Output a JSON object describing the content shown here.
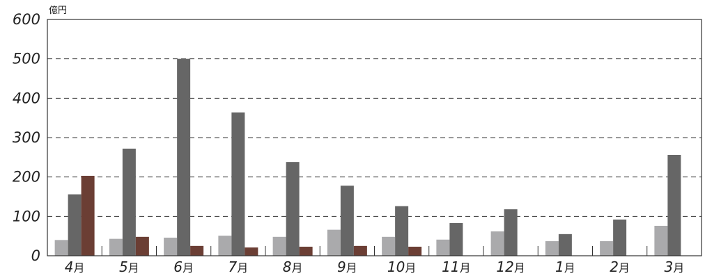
{
  "chart_data": {
    "type": "bar",
    "unit": "億円",
    "categories": [
      {
        "num": "4",
        "unit": "月"
      },
      {
        "num": "5",
        "unit": "月"
      },
      {
        "num": "6",
        "unit": "月"
      },
      {
        "num": "7",
        "unit": "月"
      },
      {
        "num": "8",
        "unit": "月"
      },
      {
        "num": "9",
        "unit": "月"
      },
      {
        "num": "10",
        "unit": "月"
      },
      {
        "num": "11",
        "unit": "月"
      },
      {
        "num": "12",
        "unit": "月"
      },
      {
        "num": "1",
        "unit": "月"
      },
      {
        "num": "2",
        "unit": "月"
      },
      {
        "num": "3",
        "unit": "月"
      }
    ],
    "series": [
      {
        "color": "#aaaaac",
        "values": [
          40,
          43,
          46,
          51,
          48,
          66,
          48,
          41,
          62,
          37,
          37,
          76
        ]
      },
      {
        "color": "#666666",
        "values": [
          156,
          272,
          500,
          364,
          238,
          178,
          126,
          83,
          118,
          55,
          92,
          256
        ]
      },
      {
        "color": "#6b3e34",
        "values": [
          203,
          48,
          25,
          21,
          23,
          25,
          23,
          null,
          null,
          null,
          null,
          null
        ]
      }
    ],
    "yticks": [
      "0",
      "100",
      "200",
      "300",
      "400",
      "500",
      "600"
    ],
    "ylim": [
      0,
      600
    ],
    "grid": "horizontal-dashed",
    "legend": "none"
  }
}
